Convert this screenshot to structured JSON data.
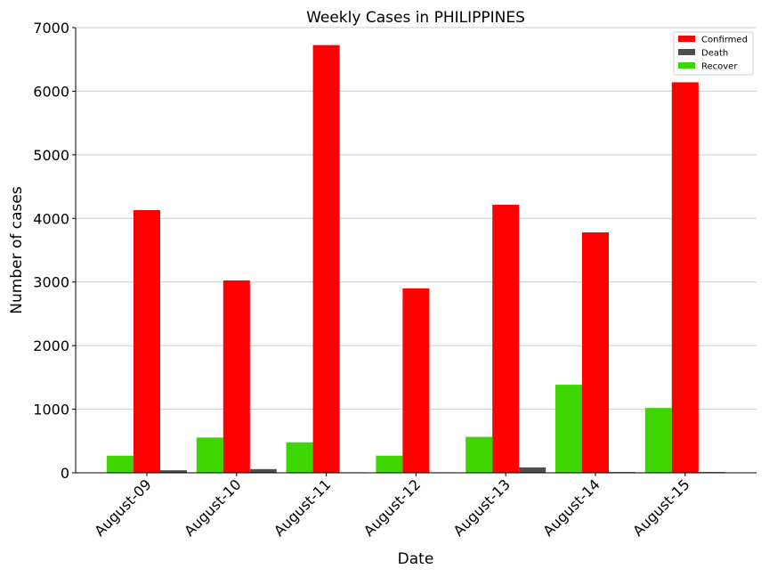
{
  "chart_data": {
    "type": "bar",
    "title": "Weekly Cases in PHILIPPINES",
    "xlabel": "Date",
    "ylabel": "Number of cases",
    "categories": [
      "August-09",
      "August-10",
      "August-11",
      "August-12",
      "August-13",
      "August-14",
      "August-15"
    ],
    "series": [
      {
        "name": "Recover",
        "color": "#3dd600",
        "values": [
          270,
          555,
          480,
          270,
          565,
          1385,
          1020
        ]
      },
      {
        "name": "Confirmed",
        "color": "#ff0000",
        "values": [
          4130,
          3025,
          6725,
          2900,
          4215,
          3780,
          6140
        ]
      },
      {
        "name": "Death",
        "color": "#4d4d4d",
        "values": [
          40,
          58,
          8,
          8,
          85,
          12,
          12
        ]
      }
    ],
    "legend_order": [
      "Confirmed",
      "Death",
      "Recover"
    ],
    "ylim": [
      0,
      7000
    ],
    "yticks": [
      0,
      1000,
      2000,
      3000,
      4000,
      5000,
      6000,
      7000
    ],
    "grid": "horizontal",
    "legend_position": "top-right"
  }
}
